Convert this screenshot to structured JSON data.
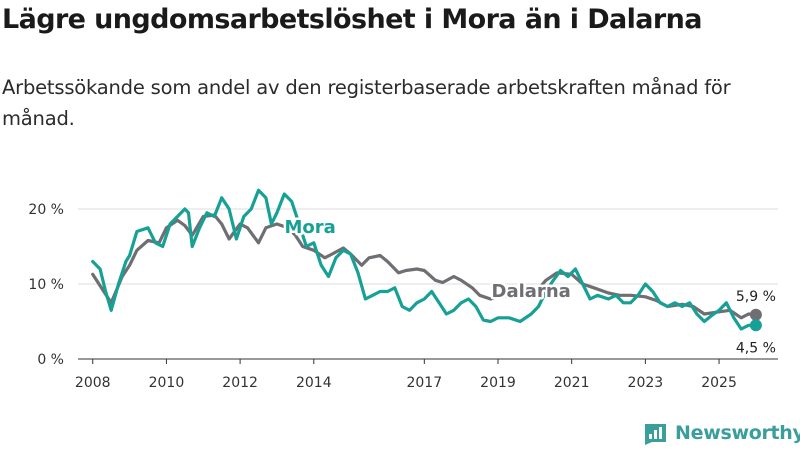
{
  "header": {
    "title": "Lägre ungdomsarbetslöshet i Mora än i Dalarna",
    "subtitle": "Arbetssökande som andel av den registerbaserade arbetskraften månad för månad."
  },
  "brand": {
    "name": "Newsworthy",
    "icon": "newsworthy-logo-icon",
    "color": "#3a9e9a"
  },
  "chart_data": {
    "type": "line",
    "title": "Lägre ungdomsarbetslöshet i Mora än i Dalarna",
    "subtitle": "Arbetssökande som andel av den registerbaserade arbetskraften månad för månad.",
    "xlabel": "",
    "ylabel": "",
    "xlim": [
      2007.6,
      2026.6
    ],
    "ylim": [
      0,
      20
    ],
    "grid": true,
    "x_ticks": [
      {
        "value": 2008,
        "label": "2008"
      },
      {
        "value": 2010,
        "label": "2010"
      },
      {
        "value": 2012,
        "label": "2012"
      },
      {
        "value": 2014,
        "label": "2014"
      },
      {
        "value": 2017,
        "label": "2017"
      },
      {
        "value": 2019,
        "label": "2019"
      },
      {
        "value": 2021,
        "label": "2021"
      },
      {
        "value": 2023,
        "label": "2023"
      },
      {
        "value": 2025,
        "label": "2025"
      }
    ],
    "y_ticks": [
      {
        "value": 0,
        "label": "0 %"
      },
      {
        "value": 10,
        "label": "10 %"
      },
      {
        "value": 20,
        "label": "20 %"
      }
    ],
    "series": [
      {
        "name": "Dalarna",
        "color": "#6f6f73",
        "label": "Dalarna",
        "label_pos": [
          2019.9,
          8.3
        ],
        "end_label": "5,9 %",
        "points": [
          [
            2008.0,
            11.3
          ],
          [
            2008.3,
            9.0
          ],
          [
            2008.5,
            7.5
          ],
          [
            2008.8,
            11.0
          ],
          [
            2009.0,
            12.5
          ],
          [
            2009.2,
            14.5
          ],
          [
            2009.5,
            15.8
          ],
          [
            2009.8,
            15.5
          ],
          [
            2010.0,
            17.5
          ],
          [
            2010.3,
            18.5
          ],
          [
            2010.5,
            17.8
          ],
          [
            2010.7,
            16.5
          ],
          [
            2011.0,
            19.0
          ],
          [
            2011.3,
            19.2
          ],
          [
            2011.5,
            18.0
          ],
          [
            2011.7,
            16.0
          ],
          [
            2012.0,
            18.0
          ],
          [
            2012.2,
            17.5
          ],
          [
            2012.5,
            15.5
          ],
          [
            2012.7,
            17.5
          ],
          [
            2013.0,
            18.0
          ],
          [
            2013.3,
            17.5
          ],
          [
            2013.5,
            16.5
          ],
          [
            2013.7,
            15.0
          ],
          [
            2014.0,
            14.5
          ],
          [
            2014.3,
            13.5
          ],
          [
            2014.5,
            14.0
          ],
          [
            2014.8,
            14.8
          ],
          [
            2015.0,
            14.0
          ],
          [
            2015.3,
            12.5
          ],
          [
            2015.5,
            13.5
          ],
          [
            2015.8,
            13.8
          ],
          [
            2016.0,
            13.0
          ],
          [
            2016.3,
            11.5
          ],
          [
            2016.5,
            11.8
          ],
          [
            2016.8,
            12.0
          ],
          [
            2017.0,
            11.8
          ],
          [
            2017.3,
            10.5
          ],
          [
            2017.5,
            10.2
          ],
          [
            2017.8,
            11.0
          ],
          [
            2018.0,
            10.5
          ],
          [
            2018.3,
            9.5
          ],
          [
            2018.5,
            8.5
          ],
          [
            2018.8,
            8.0
          ],
          [
            2019.0,
            8.3
          ],
          [
            2019.3,
            8.5
          ],
          [
            2019.6,
            8.5
          ],
          [
            2020.0,
            8.8
          ],
          [
            2020.3,
            10.5
          ],
          [
            2020.6,
            11.5
          ],
          [
            2021.0,
            11.3
          ],
          [
            2021.3,
            10.0
          ],
          [
            2021.6,
            9.5
          ],
          [
            2022.0,
            8.8
          ],
          [
            2022.3,
            8.5
          ],
          [
            2022.6,
            8.5
          ],
          [
            2023.0,
            8.3
          ],
          [
            2023.3,
            7.8
          ],
          [
            2023.6,
            7.0
          ],
          [
            2024.0,
            7.3
          ],
          [
            2024.3,
            7.0
          ],
          [
            2024.6,
            6.0
          ],
          [
            2025.0,
            6.3
          ],
          [
            2025.3,
            6.5
          ],
          [
            2025.6,
            5.5
          ],
          [
            2025.8,
            6.0
          ],
          [
            2026.0,
            5.9
          ]
        ]
      },
      {
        "name": "Mora",
        "color": "#17a095",
        "label": "Mora",
        "label_pos": [
          2013.9,
          16.8
        ],
        "end_label": "4,5 %",
        "points": [
          [
            2008.0,
            13.0
          ],
          [
            2008.2,
            12.0
          ],
          [
            2008.35,
            9.0
          ],
          [
            2008.5,
            6.5
          ],
          [
            2008.7,
            10.0
          ],
          [
            2008.9,
            13.0
          ],
          [
            2009.0,
            13.8
          ],
          [
            2009.2,
            17.0
          ],
          [
            2009.5,
            17.5
          ],
          [
            2009.7,
            15.5
          ],
          [
            2009.9,
            15.0
          ],
          [
            2010.1,
            18.0
          ],
          [
            2010.3,
            19.0
          ],
          [
            2010.5,
            20.0
          ],
          [
            2010.6,
            19.5
          ],
          [
            2010.7,
            15.0
          ],
          [
            2010.9,
            17.5
          ],
          [
            2011.1,
            19.5
          ],
          [
            2011.3,
            19.0
          ],
          [
            2011.5,
            21.5
          ],
          [
            2011.7,
            20.0
          ],
          [
            2011.9,
            16.0
          ],
          [
            2012.1,
            19.0
          ],
          [
            2012.3,
            20.0
          ],
          [
            2012.5,
            22.5
          ],
          [
            2012.7,
            21.5
          ],
          [
            2012.85,
            18.0
          ],
          [
            2013.0,
            19.5
          ],
          [
            2013.2,
            22.0
          ],
          [
            2013.4,
            21.0
          ],
          [
            2013.6,
            18.0
          ],
          [
            2013.8,
            15.0
          ],
          [
            2014.0,
            15.5
          ],
          [
            2014.2,
            12.5
          ],
          [
            2014.4,
            11.0
          ],
          [
            2014.6,
            13.5
          ],
          [
            2014.8,
            14.5
          ],
          [
            2015.0,
            14.0
          ],
          [
            2015.2,
            11.5
          ],
          [
            2015.4,
            8.0
          ],
          [
            2015.6,
            8.5
          ],
          [
            2015.8,
            9.0
          ],
          [
            2016.0,
            9.0
          ],
          [
            2016.2,
            9.5
          ],
          [
            2016.4,
            7.0
          ],
          [
            2016.6,
            6.5
          ],
          [
            2016.8,
            7.5
          ],
          [
            2017.0,
            8.0
          ],
          [
            2017.2,
            9.0
          ],
          [
            2017.4,
            7.5
          ],
          [
            2017.6,
            6.0
          ],
          [
            2017.8,
            6.5
          ],
          [
            2018.0,
            7.5
          ],
          [
            2018.2,
            8.0
          ],
          [
            2018.4,
            7.0
          ],
          [
            2018.6,
            5.2
          ],
          [
            2018.8,
            5.0
          ],
          [
            2019.0,
            5.5
          ],
          [
            2019.3,
            5.5
          ],
          [
            2019.6,
            5.0
          ],
          [
            2019.9,
            6.0
          ],
          [
            2020.1,
            7.0
          ],
          [
            2020.3,
            9.0
          ],
          [
            2020.5,
            10.5
          ],
          [
            2020.7,
            11.8
          ],
          [
            2020.9,
            11.0
          ],
          [
            2021.1,
            12.0
          ],
          [
            2021.3,
            10.0
          ],
          [
            2021.5,
            8.0
          ],
          [
            2021.7,
            8.5
          ],
          [
            2022.0,
            8.0
          ],
          [
            2022.2,
            8.5
          ],
          [
            2022.4,
            7.5
          ],
          [
            2022.6,
            7.5
          ],
          [
            2022.8,
            8.5
          ],
          [
            2023.0,
            10.0
          ],
          [
            2023.2,
            9.0
          ],
          [
            2023.4,
            7.5
          ],
          [
            2023.6,
            7.0
          ],
          [
            2023.8,
            7.5
          ],
          [
            2024.0,
            7.0
          ],
          [
            2024.2,
            7.5
          ],
          [
            2024.4,
            6.0
          ],
          [
            2024.6,
            5.0
          ],
          [
            2024.8,
            5.8
          ],
          [
            2025.0,
            6.5
          ],
          [
            2025.2,
            7.5
          ],
          [
            2025.4,
            5.5
          ],
          [
            2025.6,
            4.0
          ],
          [
            2025.8,
            4.5
          ],
          [
            2026.0,
            4.5
          ]
        ]
      }
    ]
  }
}
